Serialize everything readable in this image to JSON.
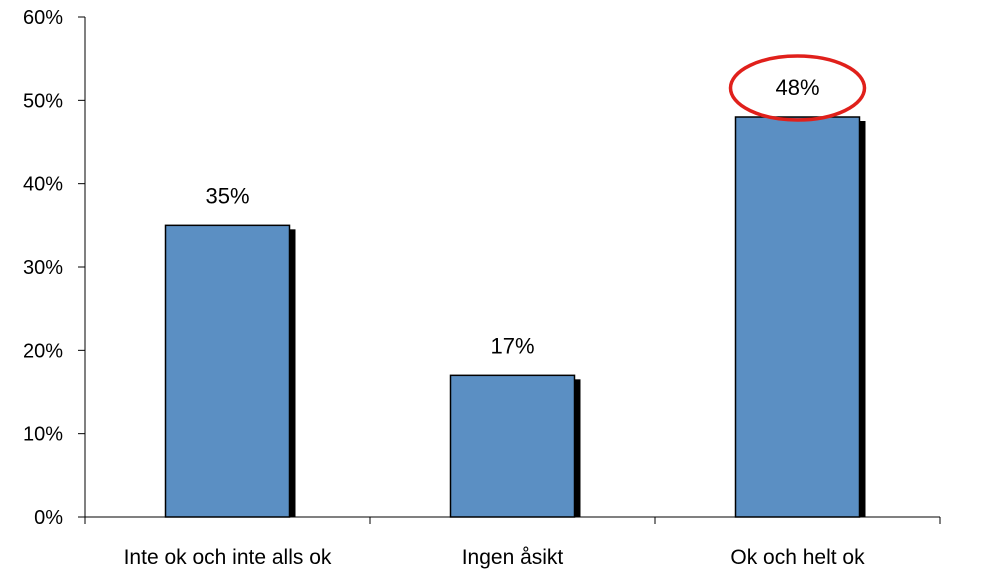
{
  "chart_data": {
    "type": "bar",
    "categories": [
      "Inte ok och inte alls ok",
      "Ingen åsikt",
      "Ok och helt ok"
    ],
    "values": [
      35,
      17,
      48
    ],
    "data_labels": [
      "35%",
      "17%",
      "48%"
    ],
    "title": "",
    "xlabel": "",
    "ylabel": "",
    "ylim": [
      0,
      60
    ],
    "yticks": [
      0,
      10,
      20,
      30,
      40,
      50,
      60
    ],
    "ytick_labels": [
      "0%",
      "10%",
      "20%",
      "30%",
      "40%",
      "50%",
      "60%"
    ],
    "grid": false,
    "legend": "none",
    "highlighted_category_index": 2,
    "colors": {
      "bar_fill": "#5b8fc3",
      "bar_outline": "#000000",
      "bar_shadow": "#000000",
      "axis": "#000000",
      "highlight_ellipse": "#e0201b"
    }
  }
}
